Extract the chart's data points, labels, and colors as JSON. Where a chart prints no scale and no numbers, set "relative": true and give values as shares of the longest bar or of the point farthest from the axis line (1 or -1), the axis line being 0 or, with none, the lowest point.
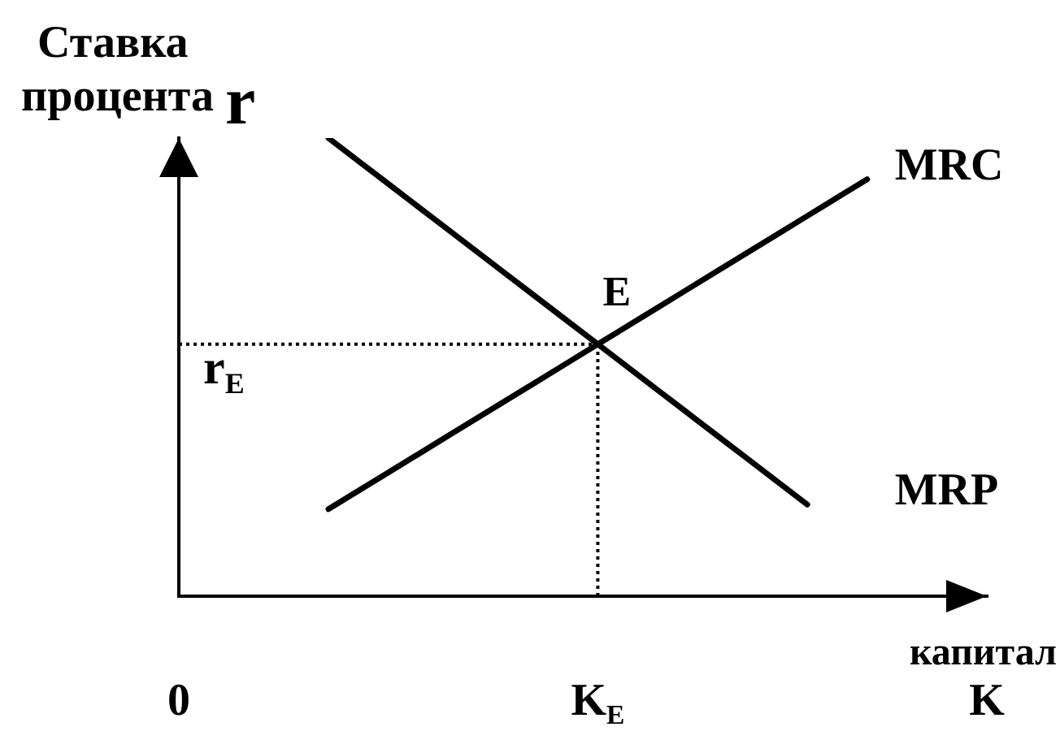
{
  "chart_data": {
    "type": "line",
    "ylabel": "Ставка процента r",
    "xlabel": "капитал",
    "relative": true,
    "categories": [
      "0",
      null,
      null,
      null,
      null,
      null,
      null,
      null,
      null,
      null,
      null,
      null,
      null,
      null,
      "K$_{E}$",
      null,
      null,
      null,
      null,
      null,
      null,
      null,
      null,
      null,
      null,
      null,
      null,
      "K"
    ],
    "series": [
      {
        "name": "MRP",
        "color": "#000000",
        "values": [
          null,
          null,
          null,
          null,
          null,
          1,
          0.95,
          0.9,
          0.85,
          0.8,
          0.75,
          0.7,
          0.65,
          0.6,
          0.55,
          0.5,
          0.45,
          0.4,
          0.35,
          0.3,
          0.25,
          0.2,
          null,
          null,
          null,
          null,
          null,
          null
        ]
      },
      {
        "name": "MRC",
        "color": "#000000",
        "values": [
          null,
          null,
          null,
          null,
          null,
          0.19,
          0.23,
          0.27,
          0.31,
          0.35,
          0.39,
          0.43,
          0.47,
          0.51,
          0.55,
          0.59,
          0.63,
          0.67,
          0.71,
          0.75,
          0.79,
          0.83,
          0.87,
          0.91,
          null,
          null,
          null,
          null
        ]
      },
      {
        "color": "#000000",
        "line_style": "dotted",
        "values": [
          0.55,
          0.55,
          0.55,
          0.55,
          0.55,
          0.55,
          0.55,
          0.55,
          0.55,
          0.55,
          0.55,
          0.55,
          0.55,
          0.55,
          0.55,
          null,
          null,
          null,
          null,
          null,
          null,
          null,
          null,
          null,
          null,
          null,
          null,
          null
        ]
      },
      {
        "color": "#000000",
        "line_style": "dotted",
        "x": [
          "K$_{E}$",
          "K$_{E}$"
        ],
        "values": [
          0,
          0.55
        ]
      }
    ],
    "annotations": [
      {
        "text": "E",
        "x": "K$_{E}$",
        "y": 0.55
      },
      {
        "text": "r$_{E}$",
        "x": "0",
        "y": 0.55
      }
    ],
    "marker": "none",
    "line_style": "solid"
  }
}
